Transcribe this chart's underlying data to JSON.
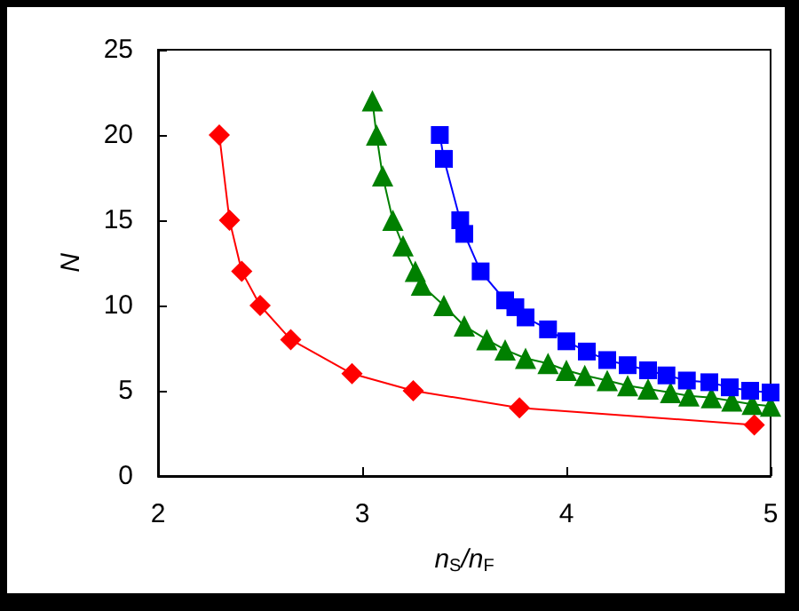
{
  "chart_data": {
    "type": "line",
    "xlabel": "n$_{S}$/n$_{F}$",
    "ylabel": "N",
    "xlim": [
      2,
      5
    ],
    "xticks": [
      2,
      3,
      4,
      5
    ],
    "ylim": [
      0,
      25
    ],
    "yticks": [
      0,
      5,
      10,
      15,
      20,
      25
    ],
    "grid": false,
    "line_style": "solid",
    "series": [
      {
        "color": "#ff0000",
        "marker": "diamond",
        "x": [
          2.3,
          2.35,
          2.41,
          2.5,
          2.65,
          2.95,
          3.25,
          3.77,
          4.92
        ],
        "values": [
          20,
          15,
          12,
          10,
          8,
          6,
          5,
          4,
          3
        ]
      },
      {
        "color": "#008000",
        "marker": "triangle",
        "x": [
          3.05,
          3.07,
          3.1,
          3.15,
          3.2,
          3.26,
          3.29,
          3.4,
          3.5,
          3.61,
          3.7,
          3.8,
          3.91,
          4.0,
          4.09,
          4.2,
          4.3,
          4.4,
          4.51,
          4.6,
          4.71,
          4.81,
          4.91,
          5.0
        ],
        "values": [
          22,
          20,
          17.6,
          15,
          13.5,
          12,
          11.2,
          10,
          8.8,
          8,
          7.4,
          6.9,
          6.6,
          6.2,
          5.9,
          5.6,
          5.3,
          5.1,
          4.9,
          4.7,
          4.6,
          4.4,
          4.2,
          4.1
        ]
      },
      {
        "color": "#0000ff",
        "marker": "square",
        "x": [
          3.38,
          3.4,
          3.48,
          3.5,
          3.58,
          3.7,
          3.75,
          3.8,
          3.91,
          4.0,
          4.1,
          4.2,
          4.3,
          4.4,
          4.49,
          4.59,
          4.7,
          4.8,
          4.9,
          5.0
        ],
        "values": [
          20,
          18.6,
          15,
          14.2,
          12,
          10.3,
          9.9,
          9.3,
          8.6,
          7.9,
          7.3,
          6.8,
          6.5,
          6.2,
          5.9,
          5.6,
          5.5,
          5.2,
          5.0,
          4.9
        ]
      }
    ]
  }
}
